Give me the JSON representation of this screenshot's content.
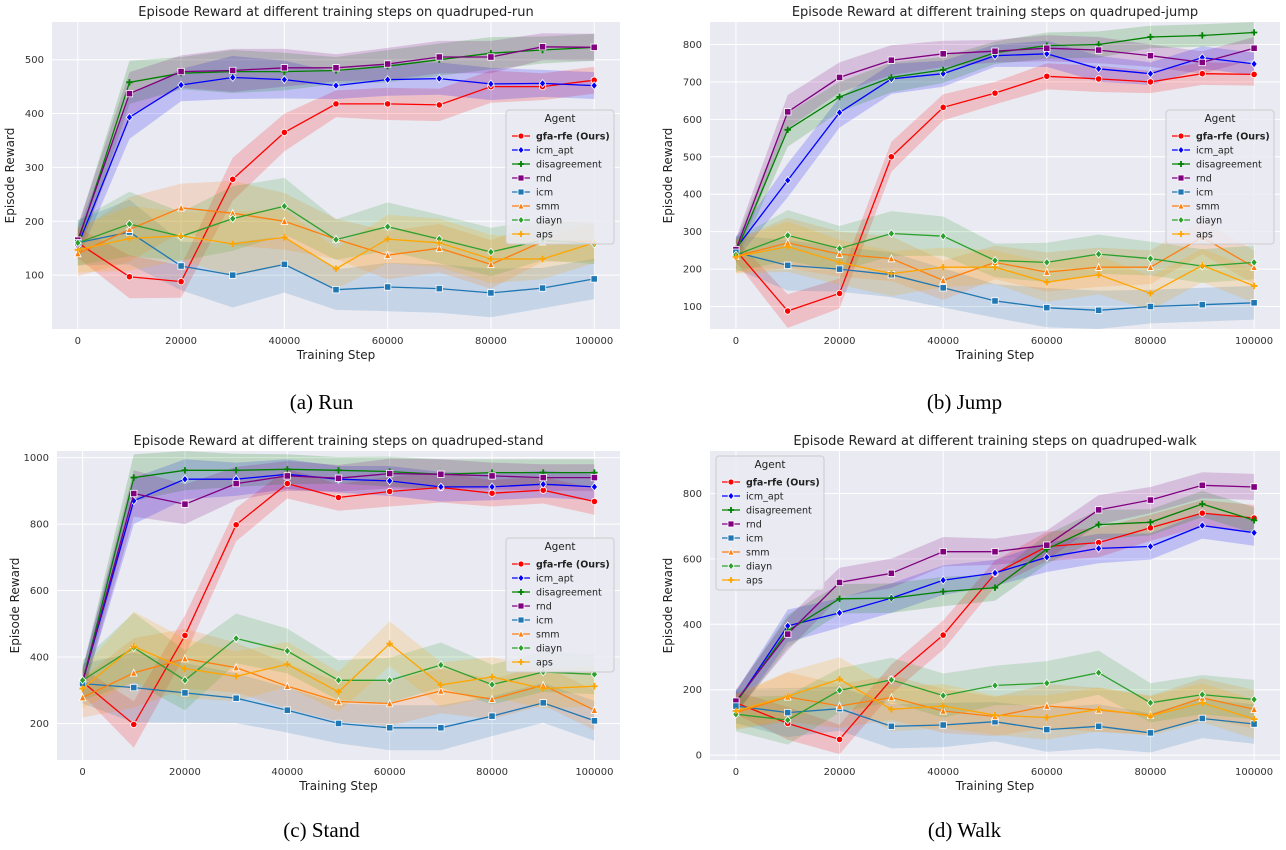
{
  "figure": {
    "captions": [
      "(a) Run",
      "(b) Jump",
      "(c) Stand",
      "(d) Walk"
    ]
  },
  "series_styles": [
    {
      "name": "gfa-rfe (Ours)",
      "color": "#ff0000",
      "marker": "circle",
      "bold": true
    },
    {
      "name": "icm_apt",
      "color": "#0000ff",
      "marker": "diamond"
    },
    {
      "name": "disagreement",
      "color": "#008000",
      "marker": "plus"
    },
    {
      "name": "rnd",
      "color": "#800080",
      "marker": "square"
    },
    {
      "name": "icm",
      "color": "#1f77b4",
      "marker": "square"
    },
    {
      "name": "smm",
      "color": "#ff7f0e",
      "marker": "triangle"
    },
    {
      "name": "diayn",
      "color": "#2ca02c",
      "marker": "diamond"
    },
    {
      "name": "aps",
      "color": "#ffa500",
      "marker": "plus"
    }
  ],
  "chart_data": [
    {
      "type": "line",
      "title": "Episode Reward at different training steps on quadruped-run",
      "xlabel": "Training Step",
      "ylabel": "Episode Reward",
      "xlim": [
        -5000,
        105000
      ],
      "ylim": [
        0,
        570
      ],
      "xticks": [
        0,
        20000,
        40000,
        60000,
        80000,
        100000
      ],
      "yticks": [
        100,
        200,
        300,
        400,
        500
      ],
      "legend_title": "Agent",
      "legend_position": "right",
      "grid": true,
      "x": [
        0,
        10000,
        20000,
        30000,
        40000,
        50000,
        60000,
        70000,
        80000,
        90000,
        100000
      ],
      "series": [
        {
          "name": "gfa-rfe (Ours)",
          "values": [
            160,
            97,
            88,
            278,
            365,
            418,
            418,
            416,
            450,
            450,
            462
          ]
        },
        {
          "name": "icm_apt",
          "values": [
            155,
            393,
            453,
            467,
            463,
            452,
            463,
            465,
            455,
            456,
            452
          ]
        },
        {
          "name": "disagreement",
          "values": [
            160,
            458,
            475,
            478,
            478,
            480,
            488,
            500,
            512,
            518,
            523
          ]
        },
        {
          "name": "rnd",
          "values": [
            165,
            437,
            478,
            480,
            485,
            485,
            492,
            505,
            505,
            524,
            523
          ]
        },
        {
          "name": "icm",
          "values": [
            160,
            180,
            117,
            100,
            120,
            73,
            78,
            75,
            67,
            76,
            93
          ]
        },
        {
          "name": "smm",
          "values": [
            140,
            185,
            225,
            215,
            200,
            167,
            137,
            150,
            120,
            162,
            163
          ]
        },
        {
          "name": "diayn",
          "values": [
            160,
            195,
            172,
            205,
            228,
            166,
            190,
            167,
            143,
            165,
            158
          ]
        },
        {
          "name": "aps",
          "values": [
            147,
            168,
            173,
            158,
            170,
            112,
            167,
            160,
            130,
            130,
            160
          ]
        }
      ]
    },
    {
      "type": "line",
      "title": "Episode Reward at different training steps on quadruped-jump",
      "xlabel": "Training Step",
      "ylabel": "Episode Reward",
      "xlim": [
        -5000,
        105000
      ],
      "ylim": [
        40,
        860
      ],
      "xticks": [
        0,
        20000,
        40000,
        60000,
        80000,
        100000
      ],
      "yticks": [
        100,
        200,
        300,
        400,
        500,
        600,
        700,
        800
      ],
      "legend_title": "Agent",
      "legend_position": "right",
      "grid": true,
      "x": [
        0,
        10000,
        20000,
        30000,
        40000,
        50000,
        60000,
        70000,
        80000,
        90000,
        100000
      ],
      "series": [
        {
          "name": "gfa-rfe (Ours)",
          "values": [
            250,
            88,
            135,
            500,
            632,
            670,
            715,
            708,
            700,
            722,
            720
          ]
        },
        {
          "name": "icm_apt",
          "values": [
            255,
            437,
            618,
            708,
            722,
            770,
            775,
            735,
            722,
            765,
            748
          ]
        },
        {
          "name": "disagreement",
          "values": [
            245,
            572,
            660,
            712,
            732,
            778,
            797,
            800,
            820,
            824,
            832
          ]
        },
        {
          "name": "rnd",
          "values": [
            252,
            620,
            712,
            758,
            775,
            782,
            790,
            785,
            770,
            752,
            790
          ]
        },
        {
          "name": "icm",
          "values": [
            245,
            210,
            200,
            185,
            150,
            115,
            97,
            90,
            100,
            105,
            110
          ]
        },
        {
          "name": "smm",
          "values": [
            235,
            270,
            240,
            228,
            170,
            218,
            192,
            205,
            205,
            285,
            205
          ]
        },
        {
          "name": "diayn",
          "values": [
            238,
            290,
            255,
            295,
            288,
            223,
            218,
            240,
            228,
            208,
            218
          ]
        },
        {
          "name": "aps",
          "values": [
            233,
            260,
            218,
            188,
            205,
            205,
            165,
            185,
            135,
            210,
            155
          ]
        }
      ]
    },
    {
      "type": "line",
      "title": "Episode Reward at different training steps on quadruped-stand",
      "xlabel": "Training Step",
      "ylabel": "Episode Reward",
      "xlim": [
        -5000,
        105000
      ],
      "ylim": [
        90,
        1020
      ],
      "xticks": [
        0,
        20000,
        40000,
        60000,
        80000,
        100000
      ],
      "yticks": [
        200,
        400,
        600,
        800,
        1000
      ],
      "legend_title": "Agent",
      "legend_position": "right",
      "grid": true,
      "x": [
        0,
        10000,
        20000,
        30000,
        40000,
        50000,
        60000,
        70000,
        80000,
        90000,
        100000
      ],
      "series": [
        {
          "name": "gfa-rfe (Ours)",
          "values": [
            325,
            197,
            465,
            798,
            922,
            880,
            898,
            910,
            893,
            902,
            868
          ]
        },
        {
          "name": "icm_apt",
          "values": [
            325,
            870,
            935,
            935,
            950,
            935,
            930,
            912,
            912,
            920,
            912
          ]
        },
        {
          "name": "disagreement",
          "values": [
            325,
            940,
            962,
            962,
            965,
            962,
            958,
            950,
            955,
            955,
            955
          ]
        },
        {
          "name": "rnd",
          "values": [
            325,
            892,
            860,
            922,
            945,
            938,
            952,
            950,
            945,
            940,
            940
          ]
        },
        {
          "name": "icm",
          "values": [
            320,
            308,
            292,
            276,
            240,
            200,
            187,
            187,
            222,
            262,
            208
          ]
        },
        {
          "name": "smm",
          "values": [
            278,
            352,
            395,
            368,
            312,
            266,
            260,
            298,
            273,
            315,
            240
          ]
        },
        {
          "name": "diayn",
          "values": [
            330,
            428,
            330,
            456,
            418,
            330,
            330,
            376,
            317,
            355,
            348
          ]
        },
        {
          "name": "aps",
          "values": [
            305,
            432,
            365,
            342,
            378,
            295,
            440,
            316,
            340,
            305,
            312
          ]
        }
      ]
    },
    {
      "type": "line",
      "title": "Episode Reward at different training steps on quadruped-walk",
      "xlabel": "Training Step",
      "ylabel": "Episode Reward",
      "xlim": [
        -5000,
        105000
      ],
      "ylim": [
        -15,
        930
      ],
      "xticks": [
        0,
        20000,
        40000,
        60000,
        80000,
        100000
      ],
      "yticks": [
        0,
        200,
        400,
        600,
        800
      ],
      "legend_title": "Agent",
      "legend_position": "upper left",
      "grid": true,
      "x": [
        0,
        10000,
        20000,
        30000,
        40000,
        50000,
        60000,
        70000,
        80000,
        90000,
        100000
      ],
      "series": [
        {
          "name": "gfa-rfe (Ours)",
          "values": [
            160,
            97,
            48,
            232,
            367,
            555,
            638,
            650,
            695,
            740,
            725
          ]
        },
        {
          "name": "icm_apt",
          "values": [
            160,
            395,
            435,
            480,
            535,
            557,
            605,
            632,
            638,
            702,
            680
          ]
        },
        {
          "name": "disagreement",
          "values": [
            160,
            380,
            478,
            480,
            500,
            512,
            630,
            705,
            712,
            768,
            718
          ]
        },
        {
          "name": "rnd",
          "values": [
            165,
            370,
            528,
            556,
            622,
            622,
            642,
            750,
            780,
            825,
            820
          ]
        },
        {
          "name": "icm",
          "values": [
            150,
            130,
            142,
            88,
            92,
            102,
            78,
            88,
            68,
            112,
            95
          ]
        },
        {
          "name": "smm",
          "values": [
            130,
            178,
            150,
            176,
            135,
            118,
            150,
            138,
            122,
            175,
            140
          ]
        },
        {
          "name": "diayn",
          "values": [
            125,
            107,
            198,
            230,
            182,
            213,
            220,
            252,
            160,
            185,
            170
          ]
        },
        {
          "name": "aps",
          "values": [
            135,
            180,
            232,
            140,
            150,
            122,
            115,
            140,
            120,
            160,
            110
          ]
        }
      ]
    }
  ]
}
